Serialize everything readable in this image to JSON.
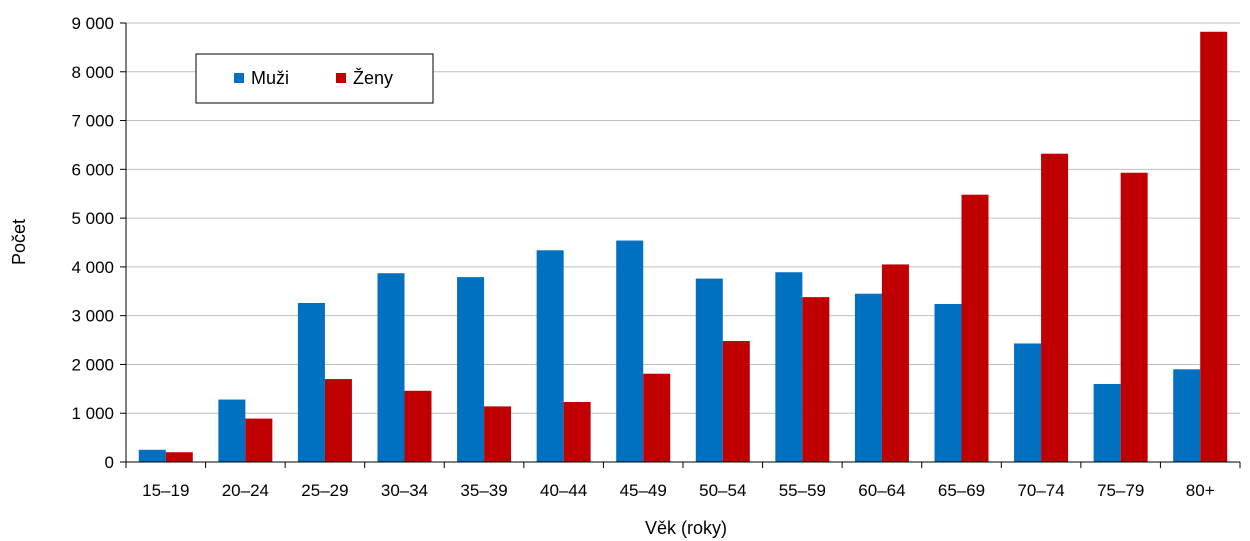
{
  "chart_data": {
    "type": "bar",
    "title": "",
    "xlabel": "Věk (roky)",
    "ylabel": "Počet",
    "ylim": [
      0,
      9000
    ],
    "yticks": [
      0,
      1000,
      2000,
      3000,
      4000,
      5000,
      6000,
      7000,
      8000,
      9000
    ],
    "ytick_labels": [
      "0",
      "1 000",
      "2 000",
      "3 000",
      "4 000",
      "5 000",
      "6 000",
      "7 000",
      "8 000",
      "9 000"
    ],
    "grid": true,
    "legend_position": "top-left",
    "categories": [
      "15–19",
      "20–24",
      "25–29",
      "30–34",
      "35–39",
      "40–44",
      "45–49",
      "50–54",
      "55–59",
      "60–64",
      "65–69",
      "70–74",
      "75–79",
      "80+"
    ],
    "series": [
      {
        "name": "Muži",
        "color": "#0070c0",
        "values": [
          250,
          1280,
          3260,
          3870,
          3790,
          4340,
          4540,
          3760,
          3890,
          3450,
          3240,
          2430,
          1600,
          1900
        ]
      },
      {
        "name": "Ženy",
        "color": "#c00000",
        "values": [
          200,
          890,
          1700,
          1460,
          1140,
          1230,
          1810,
          2480,
          3380,
          4050,
          5480,
          6320,
          5930,
          8820
        ]
      }
    ]
  }
}
